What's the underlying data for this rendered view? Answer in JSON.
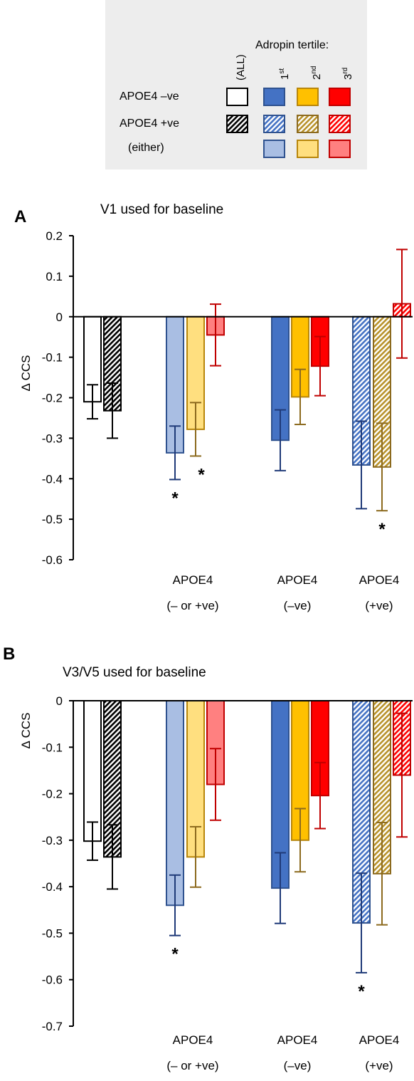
{
  "legend": {
    "header": "Adropin tertile:",
    "all_label": "(ALL)",
    "tertiles": [
      {
        "base": "1",
        "sup": "st"
      },
      {
        "base": "2",
        "sup": "nd"
      },
      {
        "base": "3",
        "sup": "rd"
      }
    ],
    "rows": [
      "APOE4 –ve",
      "APOE4 +ve",
      "(either)"
    ],
    "colors": {
      "blue": "#4472C4",
      "blue_light": "#A9BEE3",
      "blue_dark": "#1F3A78",
      "gold": "#FFC000",
      "gold_light": "#FFDF7F",
      "gold_dark": "#8C6A1E",
      "red": "#FF0000",
      "red_light": "#FF8080",
      "red_dark": "#C00000"
    }
  },
  "groups": [
    {
      "line1": "APOE4",
      "line2": "(– or +ve)"
    },
    {
      "line1": "APOE4",
      "line2": "(–ve)"
    },
    {
      "line1": "APOE4",
      "line2": "(+ve)"
    }
  ],
  "chart_data": [
    {
      "panel": "A",
      "type": "bar",
      "title": "V1 used for baseline",
      "ylabel": "Δ CCS",
      "ylim": [
        -0.6,
        0.2
      ],
      "yticks": [
        "0.2",
        "0.1",
        "0",
        "-0.1",
        "-0.2",
        "-0.3",
        "-0.4",
        "-0.5",
        "-0.6"
      ],
      "significance_marker": "*",
      "bars": [
        {
          "category": "(ALL)",
          "series": "APOE4 -ve",
          "value": -0.21,
          "error": 0.042
        },
        {
          "category": "(ALL)",
          "series": "APOE4 +ve",
          "value": -0.232,
          "error": 0.068
        },
        {
          "category": "APOE4 (– or +ve)",
          "series": "1st tertile",
          "value": -0.336,
          "error": 0.066,
          "significant": true
        },
        {
          "category": "APOE4 (– or +ve)",
          "series": "2nd tertile",
          "value": -0.278,
          "error": 0.066,
          "significant": true
        },
        {
          "category": "APOE4 (– or +ve)",
          "series": "3rd tertile",
          "value": -0.045,
          "error": 0.076
        },
        {
          "category": "APOE4 (–ve)",
          "series": "1st tertile",
          "value": -0.305,
          "error": 0.075
        },
        {
          "category": "APOE4 (–ve)",
          "series": "2nd tertile",
          "value": -0.198,
          "error": 0.068
        },
        {
          "category": "APOE4 (–ve)",
          "series": "3rd tertile",
          "value": -0.122,
          "error": 0.073
        },
        {
          "category": "APOE4 (+ve)",
          "series": "1st tertile",
          "value": -0.366,
          "error": 0.108
        },
        {
          "category": "APOE4 (+ve)",
          "series": "2nd tertile",
          "value": -0.371,
          "error": 0.108,
          "significant": true
        },
        {
          "category": "APOE4 (+ve)",
          "series": "3rd tertile",
          "value": 0.032,
          "error": 0.134
        }
      ]
    },
    {
      "panel": "B",
      "type": "bar",
      "title": "V3/V5 used for baseline",
      "ylabel": "Δ CCS",
      "ylim": [
        -0.7,
        0
      ],
      "yticks": [
        "0",
        "-0.1",
        "-0.2",
        "-0.3",
        "-0.4",
        "-0.5",
        "-0.6",
        "-0.7"
      ],
      "significance_marker": "*",
      "bars": [
        {
          "category": "(ALL)",
          "series": "APOE4 -ve",
          "value": -0.302,
          "error": 0.041
        },
        {
          "category": "(ALL)",
          "series": "APOE4 +ve",
          "value": -0.336,
          "error": 0.069
        },
        {
          "category": "APOE4 (– or +ve)",
          "series": "1st tertile",
          "value": -0.44,
          "error": 0.065,
          "significant": true
        },
        {
          "category": "APOE4 (– or +ve)",
          "series": "2nd tertile",
          "value": -0.336,
          "error": 0.065
        },
        {
          "category": "APOE4 (– or +ve)",
          "series": "3rd tertile",
          "value": -0.18,
          "error": 0.077
        },
        {
          "category": "APOE4 (–ve)",
          "series": "1st tertile",
          "value": -0.403,
          "error": 0.076
        },
        {
          "category": "APOE4 (–ve)",
          "series": "2nd tertile",
          "value": -0.3,
          "error": 0.068
        },
        {
          "category": "APOE4 (–ve)",
          "series": "3rd tertile",
          "value": -0.204,
          "error": 0.071
        },
        {
          "category": "APOE4 (+ve)",
          "series": "1st tertile",
          "value": -0.478,
          "error": 0.107,
          "significant": true
        },
        {
          "category": "APOE4 (+ve)",
          "series": "2nd tertile",
          "value": -0.372,
          "error": 0.11
        },
        {
          "category": "APOE4 (+ve)",
          "series": "3rd tertile",
          "value": -0.16,
          "error": 0.133
        }
      ]
    }
  ]
}
